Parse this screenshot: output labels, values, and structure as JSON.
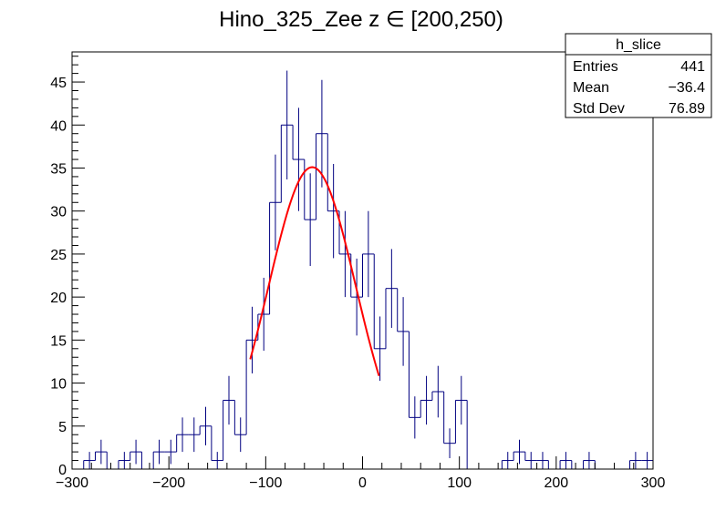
{
  "chart_data": {
    "type": "histogram",
    "title": "Hino_325_Zee z  ∈ [200,250)",
    "xlabel": "",
    "ylabel": "",
    "xlim": [
      -300,
      300
    ],
    "ylim": [
      0,
      48.5
    ],
    "x_ticks": [
      -300,
      -200,
      -100,
      0,
      100,
      200,
      300
    ],
    "x_tick_labels": [
      "−300",
      "−200",
      "−100",
      "0",
      "100",
      "200",
      "300"
    ],
    "y_ticks": [
      0,
      5,
      10,
      15,
      20,
      25,
      30,
      35,
      40,
      45
    ],
    "y_tick_labels": [
      "0",
      "5",
      "10",
      "15",
      "20",
      "25",
      "30",
      "35",
      "40",
      "45"
    ],
    "bin_width": 12,
    "bin_edges_start": -300,
    "counts": [
      0,
      1,
      2,
      0,
      1,
      2,
      0,
      2,
      2,
      4,
      4,
      5,
      1,
      8,
      4,
      15,
      18,
      31,
      40,
      36,
      29,
      39,
      30,
      25,
      20,
      25,
      14,
      21,
      16,
      6,
      8,
      9,
      3,
      8,
      0,
      0,
      0,
      1,
      2,
      1,
      1,
      0,
      1,
      0,
      1,
      0,
      0,
      0,
      1,
      1
    ],
    "series_color": "#000080",
    "fit": {
      "type": "gaus",
      "color": "#ff0000",
      "constant": 35.1,
      "mean": -52,
      "sigma": 45,
      "range": [
        -116,
        17
      ]
    },
    "stats_box": {
      "name": "h_slice",
      "rows": [
        {
          "label": "Entries",
          "value": "441"
        },
        {
          "label": "Mean",
          "value": "−36.4"
        },
        {
          "label": "Std Dev",
          "value": "76.89"
        }
      ]
    }
  }
}
